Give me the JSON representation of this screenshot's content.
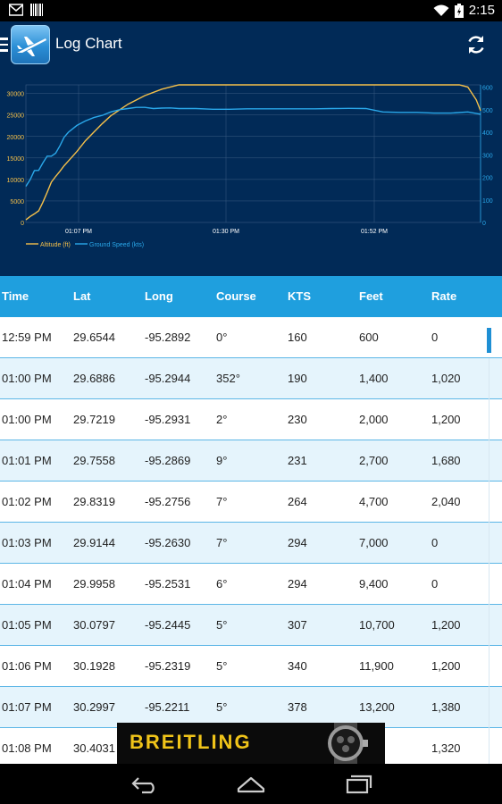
{
  "status_bar": {
    "time": "2:15",
    "icons": [
      "gmail-icon",
      "barcode-icon",
      "wifi-icon",
      "battery-charging-icon"
    ]
  },
  "app_bar": {
    "title": "Log Chart",
    "icons": [
      "menu-icon",
      "airplane-logo-icon",
      "refresh-icon"
    ]
  },
  "chart_data": {
    "type": "line",
    "x_tick_labels": [
      "01:07 PM",
      "01:30 PM",
      "01:52 PM"
    ],
    "y_left_ticks": [
      0,
      5000,
      10000,
      15000,
      20000,
      25000,
      30000
    ],
    "y_right_ticks": [
      0,
      100,
      200,
      300,
      400,
      500,
      600
    ],
    "y_left_range": [
      0,
      32000
    ],
    "y_right_range": [
      0,
      610
    ],
    "x_range_minutes": [
      0,
      107
    ],
    "grid": true,
    "legend_position": "bottom-left",
    "colors": {
      "altitude": "#f5c04a",
      "ground_speed": "#2aa8ea",
      "background": "#012a57",
      "grid": "#3b5c82"
    },
    "series": [
      {
        "name": "Altitude (ft)",
        "axis": "left",
        "x": [
          0,
          1,
          2,
          3,
          4,
          5,
          6,
          7,
          8,
          9,
          10,
          12,
          14,
          16,
          18,
          20,
          24,
          28,
          32,
          36,
          40,
          44,
          48,
          52,
          56,
          60,
          64,
          70,
          76,
          82,
          88,
          92,
          96,
          98,
          100,
          102,
          104,
          106,
          107
        ],
        "values": [
          600,
          1400,
          2000,
          2700,
          4700,
          7000,
          9400,
          10700,
          11900,
          13200,
          14300,
          16500,
          19000,
          21000,
          23000,
          24800,
          27500,
          29500,
          31000,
          32000,
          33000,
          33800,
          34000,
          34000,
          34000,
          34000,
          34000,
          34000,
          34000,
          34000,
          34000,
          34000,
          34000,
          34000,
          33800,
          33000,
          31500,
          28500,
          26000
        ]
      },
      {
        "name": "Ground Speed (kts)",
        "axis": "right",
        "x": [
          0,
          1,
          2,
          3,
          4,
          5,
          6,
          7,
          8,
          9,
          10,
          12,
          14,
          16,
          18,
          20,
          22,
          24,
          26,
          28,
          30,
          32,
          34,
          36,
          40,
          44,
          48,
          52,
          56,
          60,
          64,
          68,
          72,
          76,
          80,
          84,
          88,
          92,
          96,
          100,
          104,
          107
        ],
        "values": [
          160,
          190,
          230,
          231,
          264,
          294,
          294,
          307,
          340,
          378,
          400,
          430,
          450,
          465,
          475,
          490,
          500,
          505,
          510,
          510,
          505,
          507,
          508,
          505,
          505,
          502,
          502,
          504,
          504,
          504,
          504,
          504,
          505,
          506,
          505,
          490,
          488,
          488,
          485,
          485,
          490,
          480
        ]
      }
    ]
  },
  "table": {
    "columns": [
      "Time",
      "Lat",
      "Long",
      "Course",
      "KTS",
      "Feet",
      "Rate"
    ],
    "rows": [
      [
        "12:59 PM",
        "29.6544",
        "-95.2892",
        "0°",
        "160",
        "600",
        "0"
      ],
      [
        "01:00 PM",
        "29.6886",
        "-95.2944",
        "352°",
        "190",
        "1,400",
        "1,020"
      ],
      [
        "01:00 PM",
        "29.7219",
        "-95.2931",
        "2°",
        "230",
        "2,000",
        "1,200"
      ],
      [
        "01:01 PM",
        "29.7558",
        "-95.2869",
        "9°",
        "231",
        "2,700",
        "1,680"
      ],
      [
        "01:02 PM",
        "29.8319",
        "-95.2756",
        "7°",
        "264",
        "4,700",
        "2,040"
      ],
      [
        "01:03 PM",
        "29.9144",
        "-95.2630",
        "7°",
        "294",
        "7,000",
        "0"
      ],
      [
        "01:04 PM",
        "29.9958",
        "-95.2531",
        "6°",
        "294",
        "9,400",
        "0"
      ],
      [
        "01:05 PM",
        "30.0797",
        "-95.2445",
        "5°",
        "307",
        "10,700",
        "1,200"
      ],
      [
        "01:06 PM",
        "30.1928",
        "-95.2319",
        "5°",
        "340",
        "11,900",
        "1,200"
      ],
      [
        "01:07 PM",
        "30.2997",
        "-95.2211",
        "5°",
        "378",
        "13,200",
        "1,380"
      ],
      [
        "01:08 PM",
        "30.4031",
        "",
        "",
        "",
        "00",
        "1,320"
      ]
    ]
  },
  "ad": {
    "brand": "BREITLING",
    "icons": [
      "watch-icon"
    ]
  },
  "nav_bar": {
    "icons": [
      "back-icon",
      "home-icon",
      "recent-apps-icon"
    ]
  }
}
